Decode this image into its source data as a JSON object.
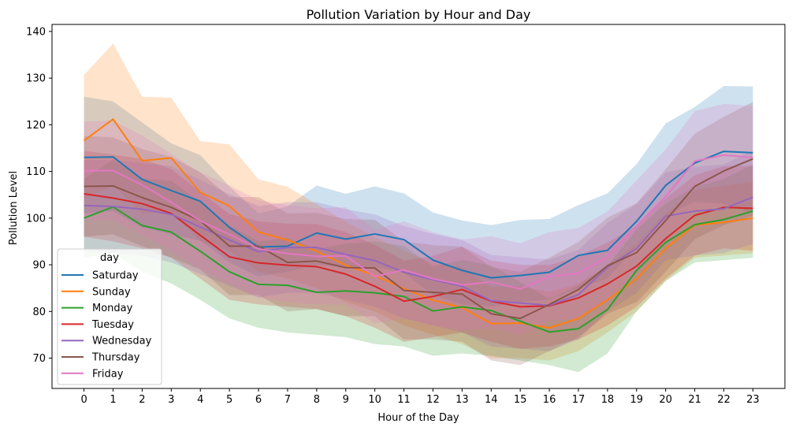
{
  "chart_data": {
    "type": "line",
    "title": "Pollution Variation by Hour and Day",
    "xlabel": "Hour of the Day",
    "ylabel": "Pollution Level",
    "x": [
      0,
      1,
      2,
      3,
      4,
      5,
      6,
      7,
      8,
      9,
      10,
      11,
      12,
      13,
      14,
      15,
      16,
      17,
      18,
      19,
      20,
      21,
      22,
      23
    ],
    "xlim": [
      -1.1,
      24.1
    ],
    "ylim": [
      63.5,
      141.5
    ],
    "yticks": [
      70,
      80,
      90,
      100,
      110,
      120,
      130,
      140
    ],
    "grid": false,
    "legend": {
      "title": "day",
      "placement": "lower-left"
    },
    "band_opacity": 0.22,
    "series": [
      {
        "name": "Saturday",
        "color": "#1f77b4",
        "values": [
          113,
          113.1,
          108.3,
          105.9,
          103.6,
          98,
          93.8,
          94,
          96.8,
          95.5,
          96.6,
          95.4,
          91,
          88.8,
          87.2,
          87.7,
          88.4,
          92,
          93.1,
          99.3,
          107,
          111.8,
          114.3,
          114
        ],
        "lower": [
          101,
          101.5,
          98,
          96.5,
          95.2,
          90.5,
          87.5,
          88.5,
          90,
          89.5,
          89.5,
          88.3,
          83.5,
          81.5,
          81,
          82,
          82.5,
          85,
          87,
          94,
          100.5,
          103.5,
          103,
          101
        ],
        "upper": [
          126,
          125,
          120.5,
          116,
          113.5,
          106.8,
          101,
          102.5,
          107,
          105.2,
          106.8,
          105.3,
          101.2,
          99.5,
          98.5,
          99.6,
          99.8,
          102.8,
          105.3,
          111.6,
          120.3,
          123.8,
          128.3,
          128.2
        ]
      },
      {
        "name": "Sunday",
        "color": "#ff7f0e",
        "values": [
          116.6,
          121.2,
          112.3,
          112.9,
          105.5,
          102.6,
          97,
          95.3,
          92.9,
          89.9,
          87.7,
          84.9,
          82.4,
          80.8,
          77.4,
          77.5,
          76.5,
          78.5,
          82.5,
          87,
          93.5,
          98.5,
          99.1,
          100
        ],
        "lower": [
          104,
          107,
          101,
          101.5,
          95,
          93,
          88.5,
          87,
          85,
          82,
          80,
          77,
          75,
          73,
          70,
          70,
          69.5,
          71.5,
          75.5,
          80,
          86.5,
          91.5,
          92,
          92.5
        ],
        "upper": [
          130.7,
          137.4,
          126,
          125.8,
          116.5,
          115.8,
          108.3,
          106.7,
          103,
          99.2,
          95.9,
          93,
          90.3,
          89.5,
          85.3,
          85.4,
          84.2,
          86,
          90,
          94.5,
          101,
          106,
          107,
          107.8
        ]
      },
      {
        "name": "Monday",
        "color": "#2ca02c",
        "values": [
          100,
          102.4,
          98.4,
          97,
          92.9,
          88.5,
          85.8,
          85.6,
          84.1,
          84.4,
          84,
          83.2,
          80.1,
          81,
          80.2,
          77.9,
          75.6,
          76.3,
          80.4,
          88.8,
          94.8,
          98.6,
          99.7,
          101.5
        ],
        "lower": [
          91.5,
          92.5,
          88.5,
          86,
          82.5,
          78.5,
          76.5,
          75.5,
          75,
          74.5,
          73,
          72.5,
          70.5,
          71,
          70.5,
          69.5,
          68.5,
          67,
          71,
          80,
          86.5,
          90.5,
          91,
          91.5
        ],
        "upper": [
          108.5,
          112.5,
          108.5,
          108,
          103.5,
          98.5,
          95,
          95.7,
          93.5,
          94.5,
          95,
          94,
          89.7,
          91,
          89.9,
          86.3,
          82.7,
          85.6,
          89.8,
          97.6,
          103.1,
          106.7,
          108.4,
          111.5
        ]
      },
      {
        "name": "Tuesday",
        "color": "#d62728",
        "values": [
          105.2,
          104.3,
          103.1,
          101,
          96.3,
          91.7,
          90.4,
          89.9,
          89.6,
          88,
          85.4,
          82.2,
          83.2,
          84.7,
          82.2,
          81,
          81.2,
          82.9,
          85.9,
          89.7,
          95.6,
          100.6,
          102.3,
          102.1
        ],
        "lower": [
          96,
          95,
          93.5,
          91.5,
          87,
          82.5,
          81.5,
          81,
          80.5,
          79,
          76.5,
          73.5,
          74.5,
          75.5,
          73.5,
          72,
          72.5,
          74,
          77,
          81,
          87,
          92,
          93.5,
          93
        ],
        "upper": [
          114.4,
          113.6,
          112.7,
          110.5,
          105.6,
          100.9,
          99.3,
          98.8,
          98.7,
          97,
          94.3,
          90.9,
          91.9,
          93.9,
          90.9,
          90,
          89.9,
          91.8,
          94.8,
          98.4,
          104.2,
          109.2,
          111.1,
          111.2
        ]
      },
      {
        "name": "Wednesday",
        "color": "#9467bd",
        "values": [
          102.7,
          102.5,
          101.9,
          100.8,
          98.1,
          95.3,
          92.8,
          93.7,
          93.7,
          92.2,
          90.9,
          88.4,
          86.8,
          85.4,
          82.3,
          81.8,
          81.3,
          83.6,
          89.5,
          93.5,
          100.4,
          101.5,
          102,
          104.5
        ],
        "lower": [
          93,
          92.5,
          92,
          90.5,
          88,
          85.5,
          83,
          84,
          84,
          82.5,
          81,
          78.5,
          77,
          75.5,
          72.5,
          72,
          71.5,
          74,
          80,
          84,
          91,
          92,
          92.5,
          94.5
        ],
        "upper": [
          112.4,
          112.5,
          111.8,
          111.1,
          108.2,
          105.1,
          102.6,
          103.4,
          103.4,
          101.9,
          100.8,
          98.3,
          96.6,
          95.3,
          92.1,
          91.6,
          91.1,
          93.2,
          99,
          103,
          109.8,
          111,
          111.5,
          114.5
        ]
      },
      {
        "name": "Thursday",
        "color": "#8c564b",
        "values": [
          106.8,
          106.9,
          104.4,
          102.3,
          99.4,
          94,
          94,
          90.5,
          90.8,
          89.4,
          89.3,
          84.5,
          84.1,
          83.7,
          79.5,
          78.5,
          81.5,
          84.7,
          89.8,
          92.6,
          99.5,
          106.8,
          110.1,
          112.7
        ],
        "lower": [
          96,
          96.5,
          94,
          91.5,
          89,
          83.5,
          83.5,
          80,
          80.5,
          79,
          79,
          74,
          74,
          73.5,
          69.5,
          68.5,
          71.5,
          74.5,
          79.5,
          82,
          88.5,
          95.5,
          98.5,
          100.5
        ],
        "upper": [
          117.6,
          117.3,
          114.8,
          113.1,
          109.8,
          104.5,
          104.5,
          101,
          101.1,
          99.8,
          99.6,
          95,
          94.2,
          93.9,
          89.5,
          88.5,
          91.5,
          94.9,
          100.1,
          103.2,
          110.5,
          118.1,
          121.7,
          124.9
        ]
      },
      {
        "name": "Friday",
        "color": "#e377c2",
        "values": [
          110.1,
          110.2,
          107.1,
          103.4,
          99.4,
          96.5,
          93.4,
          92.4,
          91.8,
          91.9,
          87.5,
          88.9,
          87,
          85.7,
          86.3,
          84.8,
          87.5,
          88.2,
          91.7,
          98.3,
          104.6,
          112.2,
          113.5,
          113
        ],
        "lower": [
          99.5,
          99.5,
          96.5,
          93,
          89,
          86,
          83,
          82,
          81.5,
          81.5,
          77.5,
          78.5,
          77,
          76,
          76.5,
          75,
          78,
          78.5,
          82,
          88.5,
          94.5,
          101.5,
          102.5,
          102
        ],
        "upper": [
          120.7,
          120.9,
          117.7,
          113.8,
          109.8,
          107,
          103.8,
          102.8,
          102.1,
          102.3,
          97.5,
          99.3,
          97,
          95.4,
          96.1,
          94.6,
          97,
          97.9,
          101.4,
          108.1,
          114.7,
          122.9,
          124.5,
          124
        ]
      }
    ]
  }
}
